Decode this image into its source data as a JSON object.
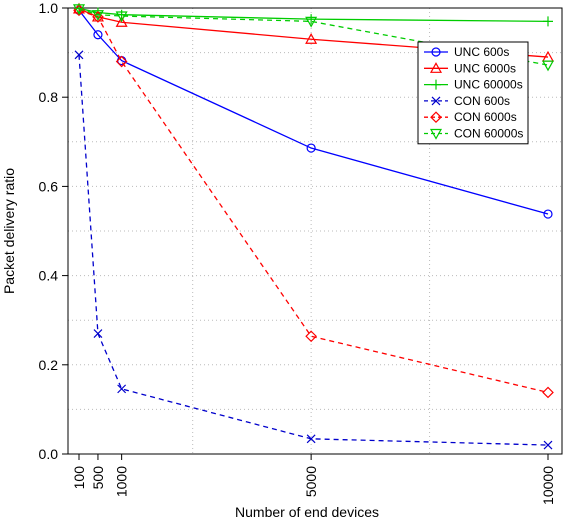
{
  "chart_data": {
    "type": "line",
    "xlabel": "Number of end devices",
    "ylabel": "Packet delivery ratio",
    "x": [
      100,
      500,
      1000,
      5000,
      10000
    ],
    "x_tick_labels": [
      "100",
      "500",
      "1000",
      "5000",
      "10000"
    ],
    "xlim": [
      0,
      10000
    ],
    "ylim": [
      0,
      1.0
    ],
    "y_ticks": [
      0.0,
      0.2,
      0.4,
      0.6,
      0.8,
      1.0
    ],
    "y_tick_labels": [
      "0.0",
      "0.2",
      "0.4",
      "0.6",
      "0.8",
      "1.0"
    ],
    "grid": true,
    "legend_position": "top-right",
    "series": [
      {
        "name": "UNC 600s",
        "color": "#0000ff",
        "dash": "solid",
        "marker": "circle",
        "values": [
          0.995,
          0.94,
          0.882,
          0.686,
          0.538
        ]
      },
      {
        "name": "UNC 6000s",
        "color": "#ff0000",
        "dash": "solid",
        "marker": "triangle-up",
        "values": [
          0.998,
          0.98,
          0.968,
          0.93,
          0.89
        ]
      },
      {
        "name": "UNC 60000s",
        "color": "#00cc00",
        "dash": "solid",
        "marker": "plus",
        "values": [
          0.999,
          0.99,
          0.985,
          0.975,
          0.97
        ]
      },
      {
        "name": "CON 600s",
        "color": "#0000cc",
        "dash": "dashed",
        "marker": "cross",
        "values": [
          0.895,
          0.27,
          0.146,
          0.034,
          0.02
        ]
      },
      {
        "name": "CON 6000s",
        "color": "#ff0000",
        "dash": "dashed",
        "marker": "diamond",
        "values": [
          0.995,
          0.98,
          0.88,
          0.264,
          0.138
        ]
      },
      {
        "name": "CON 60000s",
        "color": "#00cc00",
        "dash": "dashed",
        "marker": "triangle-down",
        "values": [
          0.998,
          0.985,
          0.982,
          0.97,
          0.872
        ]
      }
    ]
  }
}
